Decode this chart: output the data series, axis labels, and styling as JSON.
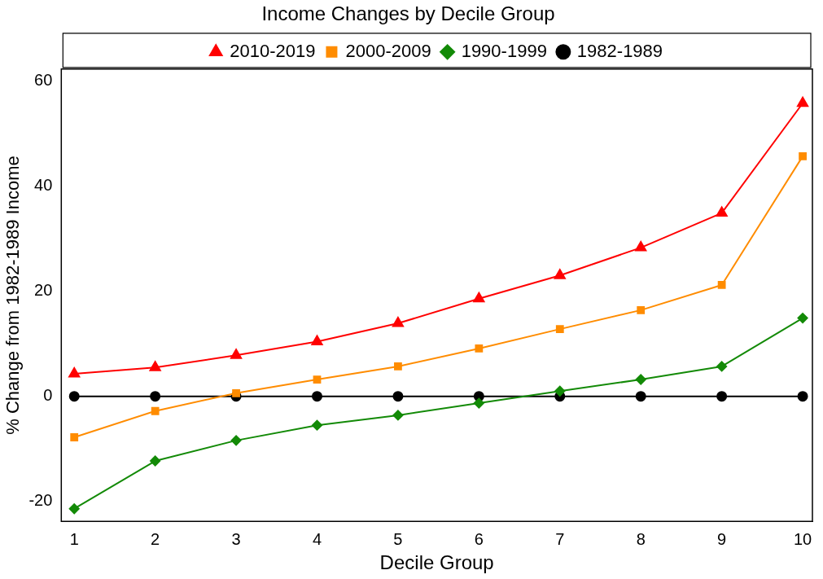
{
  "chart_data": {
    "type": "line",
    "title": "Income Changes by Decile Group",
    "xlabel": "Decile Group",
    "ylabel": "% Change from 1982-1989 Income",
    "x": [
      1,
      2,
      3,
      4,
      5,
      6,
      7,
      8,
      9,
      10
    ],
    "series": [
      {
        "name": "1982-1989",
        "color": "#000000",
        "marker": "circle",
        "values": [
          0,
          0,
          0,
          0,
          0,
          0,
          0,
          0,
          0,
          0
        ]
      },
      {
        "name": "1990-1999",
        "color": "#138a07",
        "marker": "diamond",
        "values": [
          -21.4,
          -12.3,
          -8.4,
          -5.5,
          -3.6,
          -1.3,
          1.0,
          3.2,
          5.7,
          14.9
        ]
      },
      {
        "name": "2000-2009",
        "color": "#ff8c00",
        "marker": "square",
        "values": [
          -7.8,
          -2.8,
          0.6,
          3.2,
          5.7,
          9.1,
          12.8,
          16.4,
          21.2,
          45.7
        ]
      },
      {
        "name": "2010-2019",
        "color": "#ff0000",
        "marker": "triangle",
        "values": [
          4.3,
          5.5,
          7.8,
          10.4,
          13.9,
          18.6,
          23.0,
          28.3,
          34.9,
          55.8
        ]
      }
    ],
    "xlim": [
      0.84,
      10.12
    ],
    "xticks": [
      1,
      2,
      3,
      4,
      5,
      6,
      7,
      8,
      9,
      10
    ],
    "ylim": [
      -23.8,
      62.3
    ],
    "yticks": [
      -20,
      0,
      20,
      40,
      60
    ],
    "grid": false,
    "legend": "top",
    "line_style": "solid"
  }
}
